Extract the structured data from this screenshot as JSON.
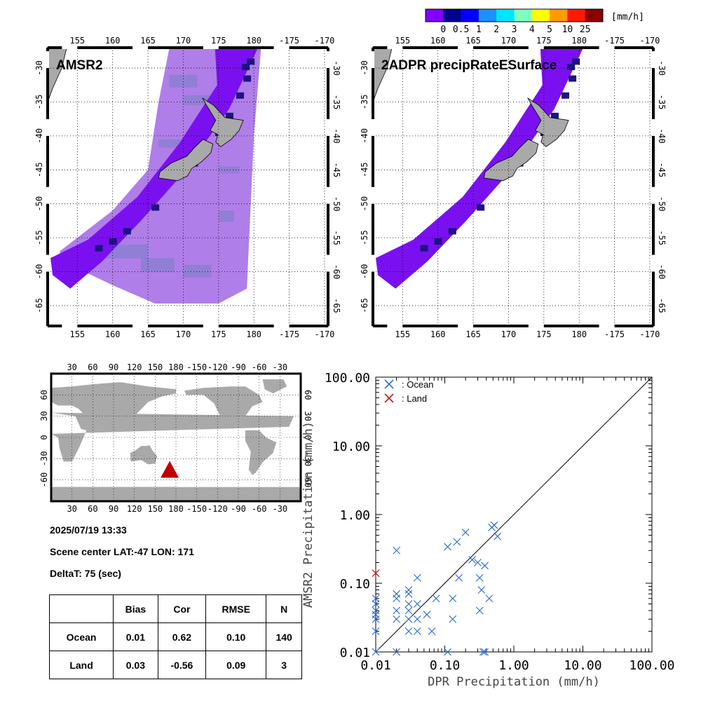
{
  "colorbar": {
    "unit": "[mm/h]",
    "labels": [
      "0",
      "0.5",
      "1",
      "2",
      "3",
      "4",
      "5",
      "10",
      "25"
    ],
    "colors": [
      "#7f00ff",
      "#00008b",
      "#0000ff",
      "#1e90ff",
      "#00e5ff",
      "#7fffbf",
      "#ffff00",
      "#ff9a00",
      "#ff1a00",
      "#8b0000"
    ]
  },
  "maps": [
    {
      "title": "AMSR2",
      "lon_labels": [
        "155",
        "160",
        "165",
        "170",
        "175",
        "180",
        "-175",
        "-170"
      ],
      "lat_labels": [
        "-30",
        "-35",
        "-40",
        "-45",
        "-50",
        "-55",
        "-60",
        "-65"
      ]
    },
    {
      "title": "2ADPR precipRateESurface",
      "lon_labels": [
        "155",
        "160",
        "165",
        "170",
        "175",
        "180",
        "-175",
        "-170"
      ],
      "lat_labels": [
        "-30",
        "-35",
        "-40",
        "-45",
        "-50",
        "-55",
        "-60",
        "-65"
      ]
    }
  ],
  "overview_map": {
    "lon_labels": [
      "30",
      "60",
      "90",
      "120",
      "150",
      "180",
      "-150",
      "-120",
      "-90",
      "-60",
      "-30"
    ],
    "lat_labels": [
      "60",
      "30",
      "0",
      "-30",
      "-60"
    ],
    "marker_color": "#c00000"
  },
  "scene": {
    "datetime": "2025/07/19 13:33",
    "center": "Scene center LAT:-47   LON: 171",
    "delta": "DeltaT:   75 (sec)"
  },
  "stats": {
    "headers": [
      "",
      "Bias",
      "Cor",
      "RMSE",
      "N"
    ],
    "rows": [
      [
        "Ocean",
        "0.01",
        "0.62",
        "0.10",
        "140"
      ],
      [
        "Land",
        "0.03",
        "-0.56",
        "0.09",
        "3"
      ]
    ]
  },
  "chart_data": {
    "type": "scatter",
    "xlabel": "DPR Precipitation (mm/h)",
    "ylabel": "AMSR2 Precipitation (mm/h)",
    "xscale": "log",
    "yscale": "log",
    "xlim": [
      0.01,
      100
    ],
    "ylim": [
      0.01,
      100
    ],
    "tick_labels": [
      "0.01",
      "0.10",
      "1.00",
      "10.00",
      "100.00"
    ],
    "legend_placement": "top-left",
    "reference_line": "1:1",
    "series": [
      {
        "name": ": Ocean",
        "color": "#2e6fd6",
        "points": [
          [
            0.01,
            0.01
          ],
          [
            0.01,
            0.02
          ],
          [
            0.01,
            0.03
          ],
          [
            0.01,
            0.035
          ],
          [
            0.01,
            0.04
          ],
          [
            0.01,
            0.05
          ],
          [
            0.01,
            0.06
          ],
          [
            0.02,
            0.3
          ],
          [
            0.02,
            0.07
          ],
          [
            0.02,
            0.06
          ],
          [
            0.02,
            0.04
          ],
          [
            0.02,
            0.03
          ],
          [
            0.02,
            0.01
          ],
          [
            0.03,
            0.08
          ],
          [
            0.03,
            0.07
          ],
          [
            0.03,
            0.05
          ],
          [
            0.03,
            0.04
          ],
          [
            0.03,
            0.03
          ],
          [
            0.03,
            0.02
          ],
          [
            0.04,
            0.12
          ],
          [
            0.04,
            0.05
          ],
          [
            0.04,
            0.03
          ],
          [
            0.04,
            0.02
          ],
          [
            0.055,
            0.035
          ],
          [
            0.065,
            0.02
          ],
          [
            0.075,
            0.06
          ],
          [
            0.11,
            0.34
          ],
          [
            0.11,
            0.01
          ],
          [
            0.13,
            0.06
          ],
          [
            0.13,
            0.03
          ],
          [
            0.15,
            0.4
          ],
          [
            0.16,
            0.12
          ],
          [
            0.2,
            0.55
          ],
          [
            0.25,
            0.22
          ],
          [
            0.3,
            0.2
          ],
          [
            0.32,
            0.12
          ],
          [
            0.32,
            0.04
          ],
          [
            0.34,
            0.08
          ],
          [
            0.36,
            0.01
          ],
          [
            0.38,
            0.01
          ],
          [
            0.38,
            0.18
          ],
          [
            0.44,
            0.06
          ],
          [
            0.48,
            0.65
          ],
          [
            0.52,
            0.7
          ],
          [
            0.58,
            0.48
          ]
        ]
      },
      {
        "name": ": Land",
        "color": "#c01818",
        "points": [
          [
            0.01,
            0.14
          ]
        ]
      }
    ]
  }
}
